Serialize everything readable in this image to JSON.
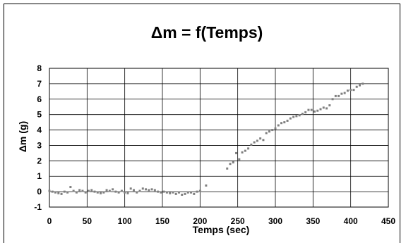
{
  "chart_data": {
    "type": "scatter",
    "title": "Δm = f(Temps)",
    "xlabel": "Temps (sec)",
    "ylabel": "Δm (g)",
    "xlim": [
      0,
      450
    ],
    "ylim": [
      -1,
      8
    ],
    "x_ticks": [
      0,
      50,
      100,
      150,
      200,
      250,
      300,
      350,
      400,
      450
    ],
    "y_ticks": [
      -1,
      0,
      1,
      2,
      3,
      4,
      5,
      6,
      7,
      8
    ],
    "grid": true,
    "legend": "none",
    "marker_color": "#808080",
    "series": [
      {
        "points": [
          [
            0,
            0.05
          ],
          [
            4,
            0.0
          ],
          [
            8,
            -0.05
          ],
          [
            12,
            -0.1
          ],
          [
            16,
            -0.15
          ],
          [
            20,
            0.0
          ],
          [
            24,
            -0.05
          ],
          [
            28,
            0.3
          ],
          [
            32,
            0.05
          ],
          [
            36,
            -0.05
          ],
          [
            40,
            0.1
          ],
          [
            44,
            0.05
          ],
          [
            48,
            -0.05
          ],
          [
            52,
            0.05
          ],
          [
            56,
            0.1
          ],
          [
            60,
            0.0
          ],
          [
            64,
            -0.05
          ],
          [
            68,
            -0.1
          ],
          [
            72,
            -0.05
          ],
          [
            76,
            0.1
          ],
          [
            80,
            0.05
          ],
          [
            84,
            0.15
          ],
          [
            88,
            0.0
          ],
          [
            92,
            -0.05
          ],
          [
            96,
            0.05
          ],
          [
            100,
            -0.05
          ],
          [
            104,
            -0.1
          ],
          [
            108,
            0.2
          ],
          [
            112,
            0.1
          ],
          [
            116,
            -0.05
          ],
          [
            120,
            0.05
          ],
          [
            124,
            0.2
          ],
          [
            128,
            0.15
          ],
          [
            132,
            0.1
          ],
          [
            136,
            0.15
          ],
          [
            140,
            0.1
          ],
          [
            144,
            0.0
          ],
          [
            148,
            -0.05
          ],
          [
            152,
            0.0
          ],
          [
            156,
            -0.05
          ],
          [
            160,
            -0.1
          ],
          [
            164,
            -0.05
          ],
          [
            168,
            -0.15
          ],
          [
            172,
            -0.05
          ],
          [
            176,
            -0.2
          ],
          [
            180,
            -0.15
          ],
          [
            184,
            -0.05
          ],
          [
            188,
            -0.05
          ],
          [
            192,
            -0.15
          ],
          [
            196,
            0.0
          ],
          [
            200,
            0.05
          ],
          [
            208,
            0.4
          ],
          [
            236,
            1.5
          ],
          [
            240,
            1.8
          ],
          [
            244,
            1.9
          ],
          [
            248,
            2.5
          ],
          [
            252,
            2.1
          ],
          [
            256,
            2.55
          ],
          [
            260,
            2.65
          ],
          [
            264,
            2.8
          ],
          [
            268,
            3.05
          ],
          [
            272,
            3.2
          ],
          [
            276,
            3.3
          ],
          [
            280,
            3.45
          ],
          [
            284,
            3.35
          ],
          [
            288,
            3.8
          ],
          [
            292,
            3.9
          ],
          [
            296,
            4.0
          ],
          [
            300,
            4.1
          ],
          [
            304,
            4.3
          ],
          [
            308,
            4.45
          ],
          [
            312,
            4.5
          ],
          [
            316,
            4.6
          ],
          [
            320,
            4.75
          ],
          [
            324,
            4.85
          ],
          [
            328,
            4.9
          ],
          [
            332,
            4.95
          ],
          [
            336,
            5.05
          ],
          [
            340,
            5.15
          ],
          [
            344,
            5.3
          ],
          [
            348,
            5.3
          ],
          [
            352,
            5.2
          ],
          [
            356,
            5.25
          ],
          [
            360,
            5.35
          ],
          [
            364,
            5.45
          ],
          [
            368,
            5.4
          ],
          [
            372,
            5.6
          ],
          [
            376,
            6.0
          ],
          [
            380,
            6.2
          ],
          [
            384,
            6.2
          ],
          [
            388,
            6.35
          ],
          [
            392,
            6.4
          ],
          [
            396,
            6.55
          ],
          [
            400,
            6.6
          ],
          [
            404,
            6.6
          ],
          [
            408,
            6.8
          ],
          [
            412,
            6.9
          ],
          [
            416,
            7.0
          ]
        ]
      }
    ]
  }
}
